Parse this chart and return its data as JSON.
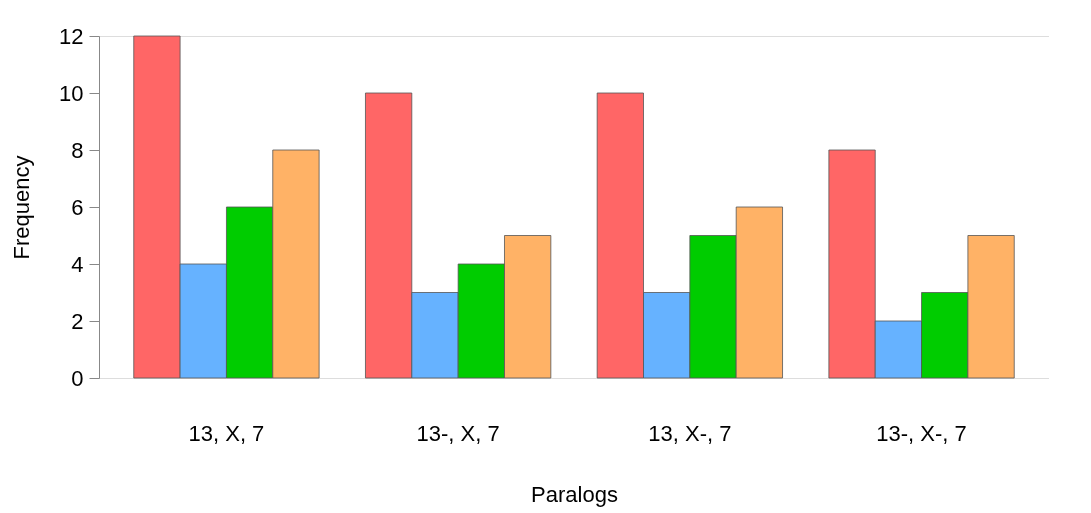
{
  "chart_data": {
    "type": "bar",
    "xlabel": "Paralogs",
    "ylabel": "Frequency",
    "categories": [
      "13, X, 7",
      "13-, X, 7",
      "13, X-, 7",
      "13-, X-, 7"
    ],
    "series": [
      {
        "color": "#ff6666",
        "values": [
          12,
          10,
          10,
          8
        ]
      },
      {
        "color": "#66b2ff",
        "values": [
          4,
          3,
          3,
          2
        ]
      },
      {
        "color": "#00cc00",
        "values": [
          6,
          4,
          5,
          3
        ]
      },
      {
        "color": "#ffb266",
        "values": [
          8,
          5,
          6,
          5
        ]
      }
    ],
    "ylim": [
      0,
      12
    ],
    "yticks": [
      0,
      2,
      4,
      6,
      8,
      10,
      12
    ],
    "grid": false,
    "legend": false
  }
}
